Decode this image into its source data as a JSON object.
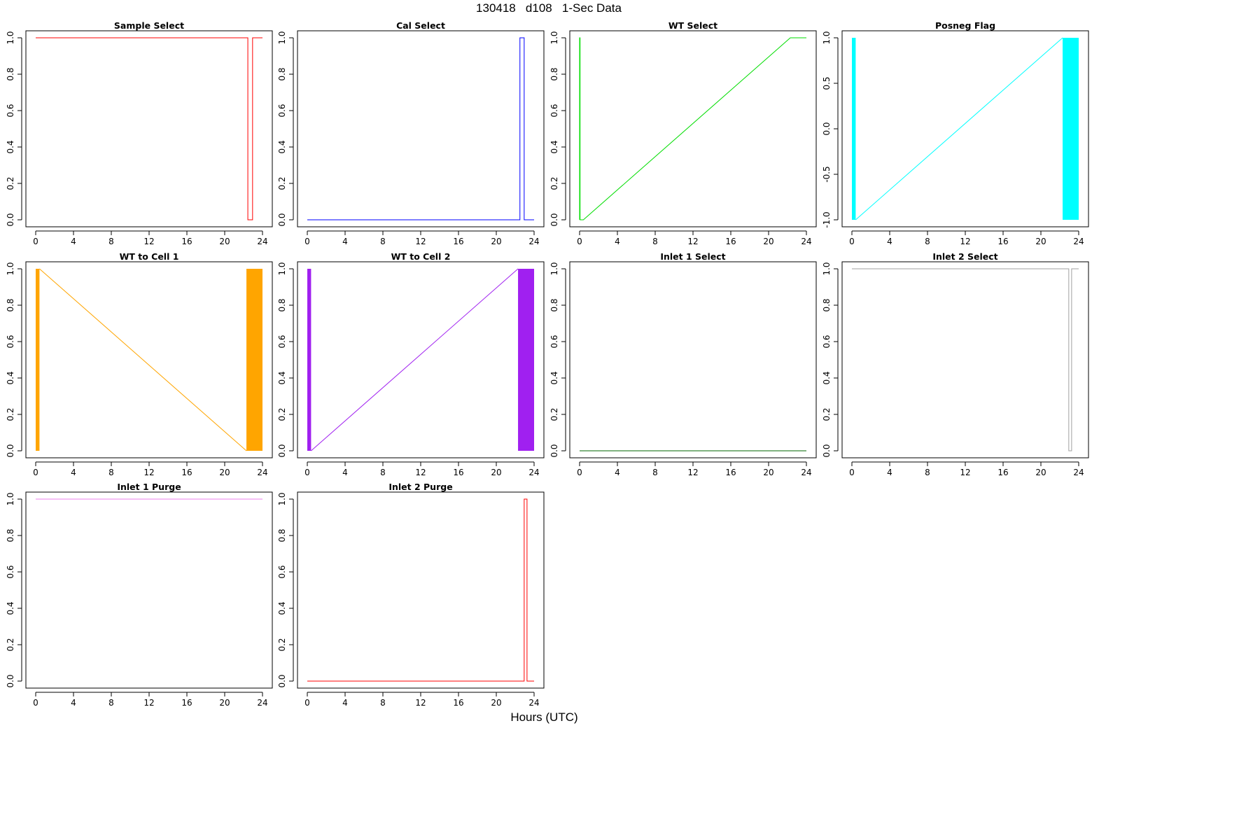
{
  "title": "130418   d108   1-Sec Data",
  "xlabel": "Hours (UTC)",
  "chart_data": [
    {
      "type": "line",
      "title": "Sample Select",
      "color": "#ff0000",
      "xlim": [
        0,
        24
      ],
      "ylim": [
        0,
        1
      ],
      "xticks": [
        0,
        4,
        8,
        12,
        16,
        20,
        24
      ],
      "yticks": [
        0.0,
        0.2,
        0.4,
        0.6,
        0.8,
        1.0
      ],
      "fill": false,
      "x": [
        0,
        22.45,
        22.45,
        22.95,
        22.95,
        24
      ],
      "y": [
        1,
        1,
        0,
        0,
        1,
        1
      ]
    },
    {
      "type": "line",
      "title": "Cal Select",
      "color": "#0000ff",
      "xlim": [
        0,
        24
      ],
      "ylim": [
        0,
        1
      ],
      "xticks": [
        0,
        4,
        8,
        12,
        16,
        20,
        24
      ],
      "yticks": [
        0.0,
        0.2,
        0.4,
        0.6,
        0.8,
        1.0
      ],
      "fill": false,
      "x": [
        0,
        22.5,
        22.5,
        22.95,
        22.95,
        24
      ],
      "y": [
        0,
        0,
        1,
        1,
        0,
        0
      ]
    },
    {
      "type": "line",
      "title": "WT Select",
      "color": "#00dd00",
      "xlim": [
        0,
        24
      ],
      "ylim": [
        0,
        1
      ],
      "xticks": [
        0,
        4,
        8,
        12,
        16,
        20,
        24
      ],
      "yticks": [
        0.0,
        0.2,
        0.4,
        0.6,
        0.8,
        1.0
      ],
      "fill": false,
      "x": [
        0,
        0,
        0.05,
        0.05,
        0.4,
        22.3,
        24
      ],
      "y": [
        0,
        1,
        1,
        0,
        0,
        1,
        1
      ]
    },
    {
      "type": "area",
      "title": "Posneg Flag",
      "color": "#00ffff",
      "xlim": [
        0,
        24
      ],
      "ylim": [
        -1,
        1
      ],
      "xticks": [
        0,
        4,
        8,
        12,
        16,
        20,
        24
      ],
      "yticks": [
        -1.0,
        -0.5,
        0.0,
        0.5,
        1.0
      ],
      "fill": true,
      "bands": [
        [
          0,
          0.4
        ],
        [
          22.3,
          24
        ]
      ],
      "x": [
        0.4,
        22.3
      ],
      "y": [
        -1,
        1
      ]
    },
    {
      "type": "area",
      "title": "WT to Cell 1",
      "color": "#ffa500",
      "xlim": [
        0,
        24
      ],
      "ylim": [
        0,
        1
      ],
      "xticks": [
        0,
        4,
        8,
        12,
        16,
        20,
        24
      ],
      "yticks": [
        0.0,
        0.2,
        0.4,
        0.6,
        0.8,
        1.0
      ],
      "fill": true,
      "bands": [
        [
          0,
          0.4
        ],
        [
          22.3,
          24
        ]
      ],
      "x": [
        0.4,
        22.3
      ],
      "y": [
        1,
        0
      ]
    },
    {
      "type": "area",
      "title": "WT to Cell 2",
      "color": "#a020f0",
      "xlim": [
        0,
        24
      ],
      "ylim": [
        0,
        1
      ],
      "xticks": [
        0,
        4,
        8,
        12,
        16,
        20,
        24
      ],
      "yticks": [
        0.0,
        0.2,
        0.4,
        0.6,
        0.8,
        1.0
      ],
      "fill": true,
      "bands": [
        [
          0,
          0.4
        ],
        [
          22.3,
          24
        ]
      ],
      "x": [
        0.4,
        22.3
      ],
      "y": [
        0,
        1
      ]
    },
    {
      "type": "line",
      "title": "Inlet 1 Select",
      "color": "#006400",
      "xlim": [
        0,
        24
      ],
      "ylim": [
        0,
        1
      ],
      "xticks": [
        0,
        4,
        8,
        12,
        16,
        20,
        24
      ],
      "yticks": [
        0.0,
        0.2,
        0.4,
        0.6,
        0.8,
        1.0
      ],
      "fill": false,
      "x": [
        0,
        24
      ],
      "y": [
        0,
        0
      ]
    },
    {
      "type": "line",
      "title": "Inlet 2 Select",
      "color": "#a0a0a0",
      "xlim": [
        0,
        24
      ],
      "ylim": [
        0,
        1
      ],
      "xticks": [
        0,
        4,
        8,
        12,
        16,
        20,
        24
      ],
      "yticks": [
        0.0,
        0.2,
        0.4,
        0.6,
        0.8,
        1.0
      ],
      "fill": false,
      "x": [
        0,
        22.95,
        22.95,
        23.25,
        23.25,
        24
      ],
      "y": [
        1,
        1,
        0,
        0,
        1,
        1
      ]
    },
    {
      "type": "line",
      "title": "Inlet 1 Purge",
      "color": "#ee82ee",
      "xlim": [
        0,
        24
      ],
      "ylim": [
        0,
        1
      ],
      "xticks": [
        0,
        4,
        8,
        12,
        16,
        20,
        24
      ],
      "yticks": [
        0.0,
        0.2,
        0.4,
        0.6,
        0.8,
        1.0
      ],
      "fill": false,
      "x": [
        0,
        24
      ],
      "y": [
        1,
        1
      ]
    },
    {
      "type": "line",
      "title": "Inlet 2 Purge",
      "color": "#ff0000",
      "xlim": [
        0,
        24
      ],
      "ylim": [
        0,
        1
      ],
      "xticks": [
        0,
        4,
        8,
        12,
        16,
        20,
        24
      ],
      "yticks": [
        0.0,
        0.2,
        0.4,
        0.6,
        0.8,
        1.0
      ],
      "fill": false,
      "x": [
        0,
        22.95,
        22.95,
        23.25,
        23.25,
        24
      ],
      "y": [
        0,
        0,
        1,
        1,
        0,
        0
      ]
    }
  ]
}
